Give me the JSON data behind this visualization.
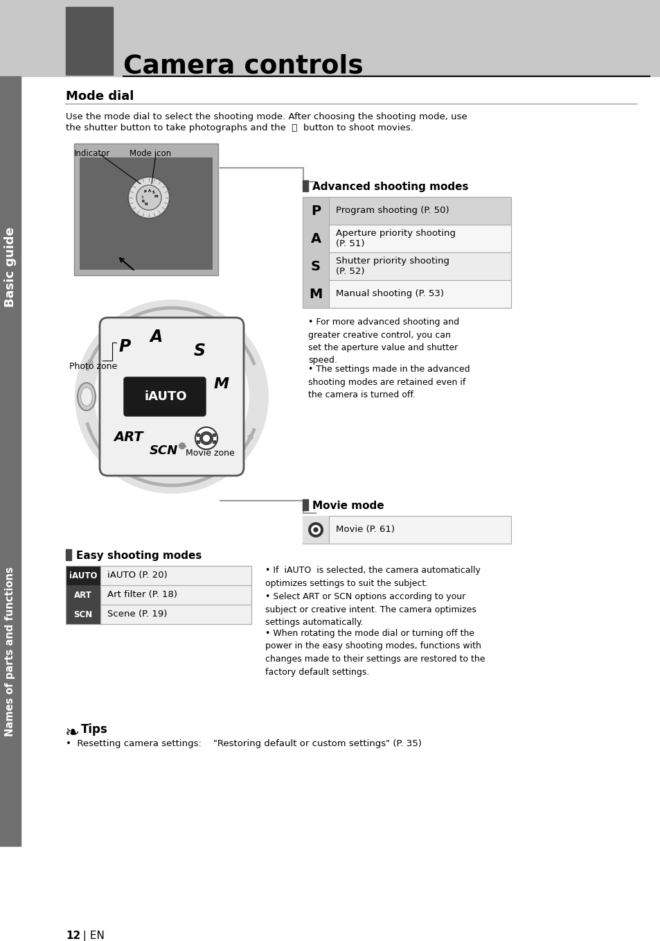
{
  "page_bg": "#ffffff",
  "header_bg": "#c8c8c8",
  "header_dark_rect": "#555555",
  "header_title": "Camera controls",
  "sidebar_bg": "#707070",
  "sidebar_text1": "Basic guide",
  "sidebar_text2": "Names of parts and functions",
  "section_title": "Mode dial",
  "intro_line1": "Use the mode dial to select the shooting mode. After choosing the shooting mode, use",
  "intro_line2": "the shutter button to take photographs and the",
  "intro_line2b": "button to shoot movies.",
  "adv_section_title": "Advanced shooting modes",
  "adv_table": [
    {
      "key": "P",
      "val": "Program shooting (P. 50)"
    },
    {
      "key": "A",
      "val": "Aperture priority shooting\n(P. 51)"
    },
    {
      "key": "S",
      "val": "Shutter priority shooting\n(P. 52)"
    },
    {
      "key": "M",
      "val": "Manual shooting (P. 53)"
    }
  ],
  "adv_bullet1": "For more advanced shooting and\ngreater creative control, you can\nset the aperture value and shutter\nspeed.",
  "adv_bullet2": "The settings made in the advanced\nshooting modes are retained even if\nthe camera is turned off.",
  "movie_section_title": "Movie mode",
  "movie_val": "Movie (P. 61)",
  "easy_section_title": "Easy shooting modes",
  "easy_table": [
    {
      "key": "iAUTO",
      "val": "iAUTO (P. 20)",
      "key_bg": "#222222",
      "key_fg": "#ffffff"
    },
    {
      "key": "ART",
      "val": "Art filter (P. 18)",
      "key_bg": "#444444",
      "key_fg": "#ffffff"
    },
    {
      "key": "SCN",
      "val": "Scene (P. 19)",
      "key_bg": "#444444",
      "key_fg": "#ffffff"
    }
  ],
  "easy_bullet1": "If  iAUTO  is selected, the camera automatically\noptimizes settings to suit the subject.",
  "easy_bullet2": "Select ART or SCN options according to your\nsubject or creative intent. The camera optimizes\nsettings automatically.",
  "easy_bullet3": "When rotating the mode dial or turning off the\npower in the easy shooting modes, functions with\nchanges made to their settings are restored to the\nfactory default settings.",
  "tips_title": "Tips",
  "tips_text": "Resetting camera settings:    \"Restoring default or custom settings\" (P. 35)",
  "page_number": "12",
  "indicator_label": "Indicator",
  "mode_icon_label": "Mode icon",
  "photo_zone_label": "Photo zone",
  "movie_zone_label": "Movie zone",
  "table_border": "#aaaaaa",
  "adv_key_bg": "#cccccc",
  "adv_row_bg1": "#e8e8e8",
  "adv_row_bg2": "#f4f4f4"
}
